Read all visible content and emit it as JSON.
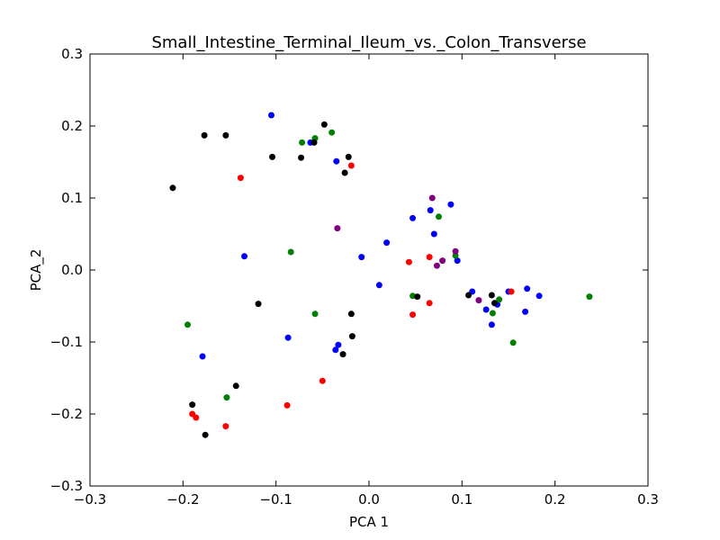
{
  "chart_data": {
    "type": "scatter",
    "title": "Small_Intestine_Terminal_Ileum_vs._Colon_Transverse",
    "xlabel": "PCA 1",
    "ylabel": "PCA_2",
    "xlim": [
      -0.3,
      0.3
    ],
    "ylim": [
      -0.3,
      0.3
    ],
    "xticks": [
      -0.3,
      -0.2,
      -0.1,
      0.0,
      0.1,
      0.2,
      0.3
    ],
    "yticks": [
      -0.3,
      -0.2,
      -0.1,
      0.0,
      0.1,
      0.2,
      0.3
    ],
    "xtick_labels": [
      "−0.3",
      "−0.2",
      "−0.1",
      "0.0",
      "0.1",
      "0.2",
      "0.3"
    ],
    "ytick_labels": [
      "−0.3",
      "−0.2",
      "−0.1",
      "0.0",
      "0.1",
      "0.2",
      "0.3"
    ],
    "grid": false,
    "series": [
      {
        "color": "#0000ff",
        "points": [
          [
            -0.105,
            0.215
          ],
          [
            -0.063,
            0.177
          ],
          [
            -0.035,
            0.151
          ],
          [
            -0.134,
            0.019
          ],
          [
            -0.087,
            -0.094
          ],
          [
            -0.036,
            -0.111
          ],
          [
            -0.033,
            -0.104
          ],
          [
            -0.179,
            -0.12
          ],
          [
            -0.008,
            0.018
          ],
          [
            0.011,
            -0.021
          ],
          [
            0.019,
            0.038
          ],
          [
            0.047,
            0.072
          ],
          [
            0.066,
            0.083
          ],
          [
            0.07,
            0.05
          ],
          [
            0.088,
            0.091
          ],
          [
            0.095,
            0.013
          ],
          [
            0.111,
            -0.03
          ],
          [
            0.126,
            -0.055
          ],
          [
            0.132,
            -0.076
          ],
          [
            0.138,
            -0.048
          ],
          [
            0.15,
            -0.03
          ],
          [
            0.168,
            -0.058
          ],
          [
            0.17,
            -0.026
          ],
          [
            0.183,
            -0.036
          ]
        ]
      },
      {
        "color": "#ff0000",
        "points": [
          [
            -0.138,
            0.128
          ],
          [
            -0.019,
            0.145
          ],
          [
            -0.19,
            -0.2
          ],
          [
            -0.186,
            -0.205
          ],
          [
            -0.154,
            -0.217
          ],
          [
            -0.088,
            -0.188
          ],
          [
            -0.05,
            -0.154
          ],
          [
            0.043,
            0.011
          ],
          [
            0.065,
            0.018
          ],
          [
            0.065,
            -0.046
          ],
          [
            0.047,
            -0.062
          ],
          [
            0.153,
            -0.03
          ]
        ]
      },
      {
        "color": "#008000",
        "points": [
          [
            -0.072,
            0.177
          ],
          [
            -0.058,
            0.183
          ],
          [
            -0.04,
            0.191
          ],
          [
            -0.084,
            0.025
          ],
          [
            -0.058,
            -0.061
          ],
          [
            -0.195,
            -0.076
          ],
          [
            -0.153,
            -0.177
          ],
          [
            0.047,
            -0.036
          ],
          [
            0.075,
            0.074
          ],
          [
            0.093,
            0.02
          ],
          [
            0.133,
            -0.06
          ],
          [
            0.14,
            -0.041
          ],
          [
            0.155,
            -0.101
          ],
          [
            0.237,
            -0.037
          ]
        ]
      },
      {
        "color": "#000000",
        "points": [
          [
            -0.211,
            0.114
          ],
          [
            -0.177,
            0.187
          ],
          [
            -0.154,
            0.187
          ],
          [
            -0.104,
            0.157
          ],
          [
            -0.073,
            0.156
          ],
          [
            -0.059,
            0.177
          ],
          [
            -0.048,
            0.202
          ],
          [
            -0.026,
            0.135
          ],
          [
            -0.022,
            0.157
          ],
          [
            -0.119,
            -0.047
          ],
          [
            -0.019,
            -0.061
          ],
          [
            -0.018,
            -0.092
          ],
          [
            -0.028,
            -0.117
          ],
          [
            -0.143,
            -0.161
          ],
          [
            -0.19,
            -0.187
          ],
          [
            -0.176,
            -0.229
          ],
          [
            0.052,
            -0.037
          ],
          [
            0.107,
            -0.035
          ],
          [
            0.132,
            -0.035
          ],
          [
            0.135,
            -0.046
          ]
        ]
      },
      {
        "color": "#800080",
        "points": [
          [
            -0.034,
            0.058
          ],
          [
            0.068,
            0.1
          ],
          [
            0.073,
            0.006
          ],
          [
            0.079,
            0.013
          ],
          [
            0.093,
            0.026
          ],
          [
            0.118,
            -0.042
          ]
        ]
      }
    ]
  }
}
